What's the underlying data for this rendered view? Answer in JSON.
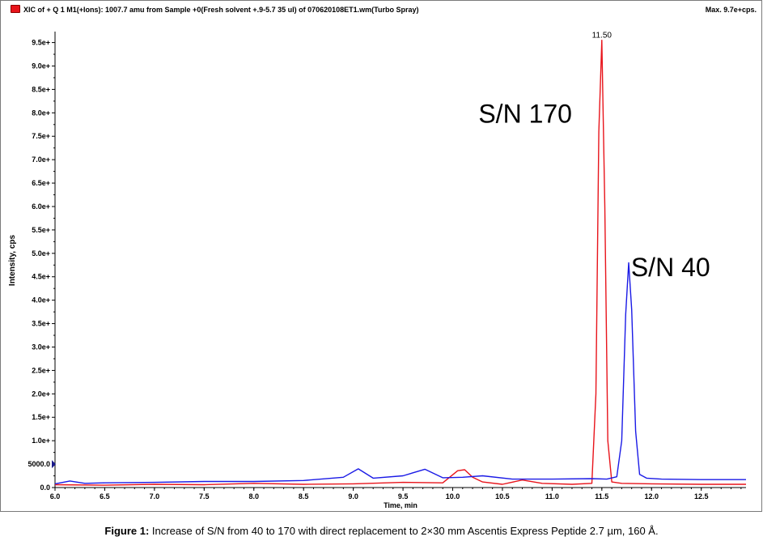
{
  "header": {
    "title": "XIC of + Q 1 M1(+Ions): 1007.7 amu from Sample +0(Fresh solvent +.9-5.7 35 ul) of 070620108ET1.wm(Turbo Spray)",
    "max_label": "Max. 9.7e+cps."
  },
  "caption": {
    "label": "Figure 1:",
    "text": "Increase of S/N from 40 to 170 with direct replacement to 2×30 mm Ascentis Express Peptide 2.7 µm, 160 Å."
  },
  "chart_data": {
    "type": "line",
    "title": "",
    "xlabel": "Time, min",
    "ylabel": "Intensity, cps",
    "xlim": [
      6.0,
      12.95
    ],
    "ylim": [
      0,
      97000
    ],
    "x_ticks": [
      "6.0",
      "6.5",
      "7.0",
      "7.5",
      "8.0",
      "8.5",
      "9.0",
      "9.5",
      "10.0",
      "10.5",
      "11.0",
      "11.5",
      "12.0",
      "12.5"
    ],
    "x_tick_values": [
      6.0,
      6.5,
      7.0,
      7.5,
      8.0,
      8.5,
      9.0,
      9.5,
      10.0,
      10.5,
      11.0,
      11.5,
      12.0,
      12.5
    ],
    "y_ticks": [
      "0.0",
      "5000.0",
      "1.0e+",
      "1.5e+",
      "2.0e+",
      "2.5e+",
      "3.0e+",
      "3.5e+",
      "4.0e+",
      "4.5e+",
      "5.0e+",
      "5.5e+",
      "6.0e+",
      "6.5e+",
      "7.0e+",
      "7.5e+",
      "8.0e+",
      "8.5e+",
      "9.0e+",
      "9.5e+"
    ],
    "y_tick_values": [
      0,
      5000,
      10000,
      15000,
      20000,
      25000,
      30000,
      35000,
      40000,
      45000,
      50000,
      55000,
      60000,
      65000,
      70000,
      75000,
      80000,
      85000,
      90000,
      95000
    ],
    "grid": false,
    "series": [
      {
        "color": "#e8141b",
        "x": [
          6.0,
          6.5,
          7.0,
          7.5,
          8.0,
          8.5,
          9.0,
          9.5,
          9.9,
          10.05,
          10.12,
          10.2,
          10.3,
          10.5,
          10.7,
          10.9,
          11.2,
          11.4,
          11.44,
          11.47,
          11.5,
          11.53,
          11.56,
          11.6,
          11.7,
          12.0,
          12.5,
          12.95
        ],
        "y": [
          600,
          500,
          700,
          600,
          900,
          700,
          800,
          1100,
          1000,
          3600,
          3800,
          2200,
          1200,
          700,
          1600,
          900,
          700,
          900,
          20000,
          76000,
          95500,
          60000,
          10000,
          1200,
          900,
          800,
          700,
          700
        ]
      },
      {
        "color": "#1a1ae6",
        "x": [
          6.0,
          6.15,
          6.3,
          6.5,
          7.0,
          7.5,
          8.0,
          8.5,
          8.9,
          9.05,
          9.2,
          9.5,
          9.72,
          9.9,
          10.1,
          10.3,
          10.6,
          11.0,
          11.4,
          11.55,
          11.65,
          11.7,
          11.74,
          11.77,
          11.8,
          11.84,
          11.88,
          11.95,
          12.1,
          12.5,
          12.95
        ],
        "y": [
          800,
          1400,
          900,
          1000,
          1100,
          1300,
          1300,
          1500,
          2200,
          4000,
          2000,
          2500,
          3900,
          2100,
          2200,
          2500,
          1800,
          1800,
          1900,
          1800,
          2300,
          10000,
          37000,
          48000,
          38000,
          12000,
          2800,
          2000,
          1800,
          1700,
          1700
        ]
      }
    ],
    "annotations": [
      {
        "text": "11.50",
        "x": 11.5,
        "y": 95500
      },
      {
        "text": "S/N 170",
        "x": 11.2,
        "y": 80000
      },
      {
        "text": "S/N 40",
        "x": 12.2,
        "y": 47000
      }
    ]
  }
}
